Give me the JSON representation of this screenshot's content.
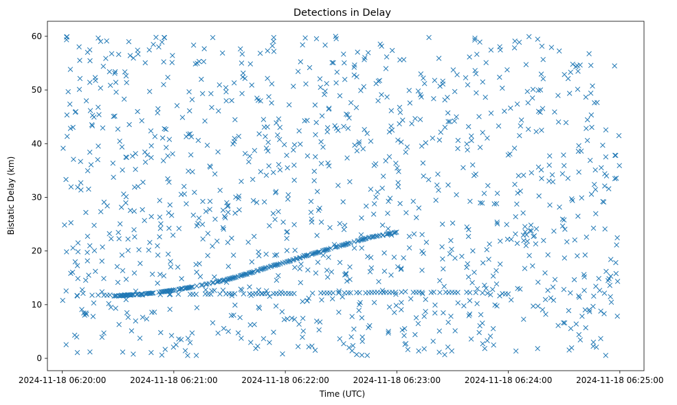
{
  "chart_data": {
    "type": "scatter",
    "title": "Detections in Delay",
    "xlabel": "Time (UTC)",
    "ylabel": "Bistatic Delay (km)",
    "marker": "x",
    "color": "#1f77b4",
    "grid": false,
    "x_start_label": "2024-11-18 06:20:00",
    "xlim_seconds": [
      -8,
      313
    ],
    "ylim": [
      -2.3,
      62.8
    ],
    "x_ticks": [
      {
        "t": 0,
        "label": "2024-11-18 06:20:00"
      },
      {
        "t": 60,
        "label": "2024-11-18 06:21:00"
      },
      {
        "t": 120,
        "label": "2024-11-18 06:22:00"
      },
      {
        "t": 180,
        "label": "2024-11-18 06:23:00"
      },
      {
        "t": 240,
        "label": "2024-11-18 06:24:00"
      },
      {
        "t": 300,
        "label": "2024-11-18 06:25:00"
      }
    ],
    "y_ticks": [
      0,
      10,
      20,
      30,
      40,
      50,
      60
    ],
    "x_range": [
      "2024-11-18 06:20:00",
      "2024-11-18 06:25:00"
    ],
    "track_main": {
      "description": "dense track",
      "points": [
        [
          28,
          11.6
        ],
        [
          40,
          11.9
        ],
        [
          50,
          12.2
        ],
        [
          60,
          12.7
        ],
        [
          70,
          13.3
        ],
        [
          80,
          14.0
        ],
        [
          90,
          14.8
        ],
        [
          100,
          15.8
        ],
        [
          110,
          16.9
        ],
        [
          120,
          17.9
        ],
        [
          135,
          19.5
        ],
        [
          150,
          21.0
        ],
        [
          165,
          22.5
        ],
        [
          180,
          23.5
        ]
      ]
    },
    "track_low": {
      "points": [
        [
          0,
          11.7
        ],
        [
          180,
          12.3
        ],
        [
          215,
          12.3
        ],
        [
          240,
          12.0
        ]
      ]
    },
    "seed": 7,
    "noise_count": 1100
  }
}
